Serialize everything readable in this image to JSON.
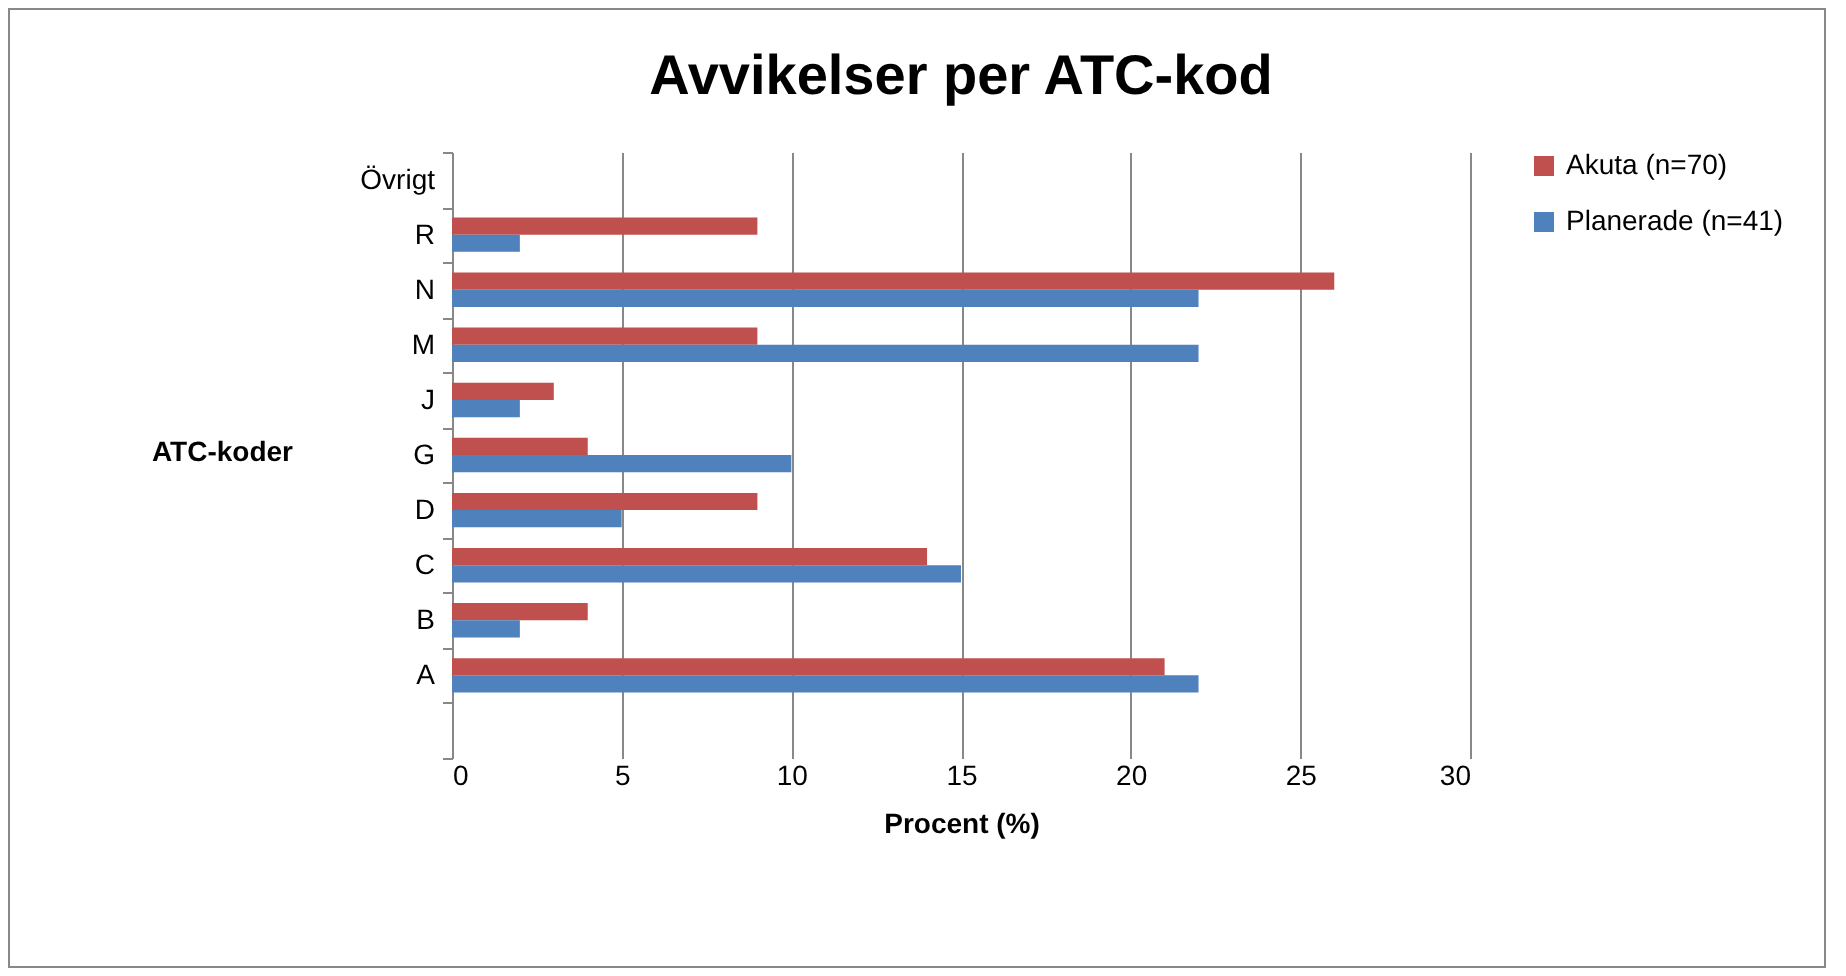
{
  "chart_data": {
    "type": "bar",
    "orientation": "horizontal",
    "title": "Avvikelser per ATC-kod",
    "xlabel": "Procent (%)",
    "ylabel": "ATC-koder",
    "categories": [
      "Övrigt",
      "R",
      "N",
      "M",
      "J",
      "G",
      "D",
      "C",
      "B",
      "A",
      null
    ],
    "series": [
      {
        "name": "Akuta (n=70)",
        "color": "#c0504d",
        "values": [
          null,
          9,
          26,
          9,
          3,
          4,
          9,
          14,
          4,
          21,
          null
        ]
      },
      {
        "name": "Planerade (n=41)",
        "color": "#4f81bd",
        "values": [
          null,
          2,
          22,
          22,
          2,
          10,
          5,
          15,
          2,
          22,
          null
        ]
      }
    ],
    "xlim": [
      0,
      30
    ],
    "xticks": [
      0,
      5,
      10,
      15,
      20,
      25,
      30
    ],
    "grid": "x",
    "legend": "right"
  }
}
